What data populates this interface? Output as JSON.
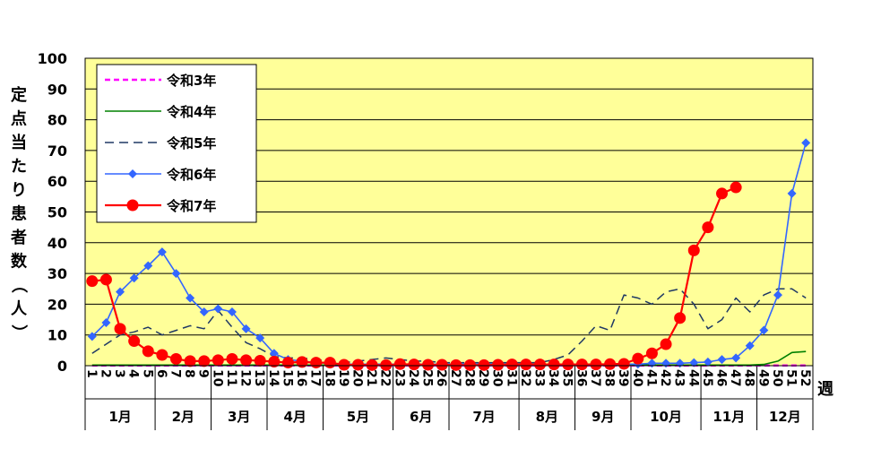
{
  "chart_data": {
    "type": "line",
    "ylabel": "定点当たり患者数（人）",
    "xlabel": "週",
    "ylim": [
      0,
      100
    ],
    "yticks": [
      0,
      10,
      20,
      30,
      40,
      50,
      60,
      70,
      80,
      90,
      100
    ],
    "x": [
      1,
      2,
      3,
      4,
      5,
      6,
      7,
      8,
      9,
      10,
      11,
      12,
      13,
      14,
      15,
      16,
      17,
      18,
      19,
      20,
      21,
      22,
      23,
      24,
      25,
      26,
      27,
      28,
      29,
      30,
      31,
      32,
      33,
      34,
      35,
      36,
      37,
      38,
      39,
      40,
      41,
      42,
      43,
      44,
      45,
      46,
      47,
      48,
      49,
      50,
      51,
      52
    ],
    "months": [
      {
        "label": "1月",
        "start": 1,
        "end": 5
      },
      {
        "label": "2月",
        "start": 6,
        "end": 9
      },
      {
        "label": "3月",
        "start": 10,
        "end": 13
      },
      {
        "label": "4月",
        "start": 14,
        "end": 17
      },
      {
        "label": "5月",
        "start": 18,
        "end": 22
      },
      {
        "label": "6月",
        "start": 23,
        "end": 26
      },
      {
        "label": "7月",
        "start": 27,
        "end": 31
      },
      {
        "label": "8月",
        "start": 32,
        "end": 35
      },
      {
        "label": "9月",
        "start": 36,
        "end": 39
      },
      {
        "label": "10月",
        "start": 40,
        "end": 44
      },
      {
        "label": "11月",
        "start": 45,
        "end": 48
      },
      {
        "label": "12月",
        "start": 49,
        "end": 52
      }
    ],
    "grid": true,
    "background": "#ffff99",
    "legend_placement": "top-left",
    "series": [
      {
        "name": "令和3年",
        "color": "#ff00ff",
        "style": "dashed-bold",
        "marker": "none",
        "values": [
          0.1,
          0.1,
          0.1,
          0.1,
          0.1,
          0.1,
          0.1,
          0.1,
          0.1,
          0.1,
          0.1,
          0.1,
          0.1,
          0.1,
          0.1,
          0.1,
          0.1,
          0.1,
          0.1,
          0.1,
          0.1,
          0.1,
          0.1,
          0.1,
          0.1,
          0.1,
          0.1,
          0.1,
          0.1,
          0.1,
          0.1,
          0.1,
          0.1,
          0.1,
          0.1,
          0.1,
          0.1,
          0.1,
          0.1,
          0.1,
          0.1,
          0.1,
          0.1,
          0.1,
          0.1,
          0.1,
          0.1,
          0.1,
          0.1,
          0.1,
          0.1,
          0.1
        ]
      },
      {
        "name": "令和4年",
        "color": "#008000",
        "style": "solid",
        "marker": "none",
        "values": [
          0.2,
          0.2,
          0.2,
          0.2,
          0.2,
          0.2,
          0.2,
          0.2,
          0.2,
          0.2,
          0.2,
          0.2,
          0.2,
          0.2,
          0.2,
          0.2,
          0.2,
          0.2,
          0.2,
          0.2,
          0.2,
          0.2,
          0.2,
          0.2,
          0.2,
          0.2,
          0.2,
          0.2,
          0.2,
          0.2,
          0.2,
          0.2,
          0.2,
          0.2,
          0.2,
          0.2,
          0.2,
          0.2,
          0.2,
          0.2,
          0.2,
          0.2,
          0.2,
          0.2,
          0.2,
          0.2,
          0.2,
          0.2,
          0.4,
          1.5,
          4.3,
          4.6
        ]
      },
      {
        "name": "令和5年",
        "color": "#1f3864",
        "style": "dashed",
        "marker": "none",
        "values": [
          4,
          7,
          10,
          11,
          12.5,
          10,
          11.5,
          13,
          12,
          18,
          12.5,
          7.5,
          5.5,
          3,
          2.5,
          2.5,
          2,
          1.5,
          1,
          1.5,
          2,
          2.5,
          2,
          1.5,
          1.5,
          1,
          1,
          1,
          1,
          1,
          1,
          1,
          1,
          2,
          3.5,
          8,
          13,
          11.5,
          23,
          22,
          20,
          24,
          25,
          20,
          12,
          15,
          22,
          17.5,
          23,
          25,
          25,
          22
        ]
      },
      {
        "name": "令和6年",
        "color": "#3366ff",
        "style": "solid",
        "marker": "diamond",
        "values": [
          9.5,
          14,
          24,
          28.5,
          32.5,
          37,
          30,
          22,
          17.5,
          18.5,
          17.5,
          12,
          9,
          4,
          2,
          1.5,
          1,
          0.8,
          0.5,
          0.5,
          0.5,
          0.5,
          0.5,
          0.5,
          0.5,
          0.5,
          0.5,
          0.5,
          0.5,
          0.5,
          0.5,
          0.5,
          0.5,
          0.5,
          0.5,
          0.5,
          0.5,
          0.5,
          0.5,
          0.5,
          0.8,
          0.8,
          0.8,
          1,
          1.2,
          2,
          2.5,
          6.5,
          11.5,
          23,
          56,
          72.5
        ]
      },
      {
        "name": "令和7年",
        "color": "#ff0000",
        "style": "solid",
        "marker": "circle",
        "values": [
          27.5,
          28,
          12,
          8,
          4.7,
          3.5,
          2.2,
          1.5,
          1.5,
          1.8,
          2.2,
          1.8,
          1.6,
          1.3,
          1,
          1.2,
          1,
          1,
          0.3,
          0.3,
          0.2,
          0.2,
          0.5,
          0.4,
          0.3,
          0.3,
          0.2,
          0.2,
          0.2,
          0.3,
          0.4,
          0.4,
          0.4,
          0.4,
          0.4,
          0.4,
          0.4,
          0.5,
          0.6,
          2.3,
          4,
          7,
          15.5,
          37.5,
          45,
          56,
          58,
          null,
          null,
          null,
          null,
          null
        ]
      }
    ]
  }
}
